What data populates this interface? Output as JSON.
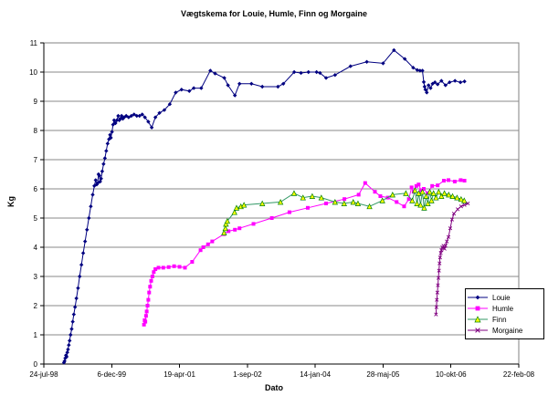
{
  "window": {
    "background": "#ffffff"
  },
  "chart_data": {
    "type": "line",
    "title": "Vægtskema for Louie, Humle, Finn og Morgaine",
    "xlabel": "Dato",
    "ylabel": "Kg",
    "x_unit": "days since 24-jul-98",
    "xlim": [
      0,
      3500
    ],
    "ylim": [
      0,
      11
    ],
    "y_tick_step": 1,
    "x_tick_positions": [
      0,
      500,
      1000,
      1500,
      2000,
      2500,
      3000,
      3500
    ],
    "x_tick_labels": [
      "24-jul-98",
      "6-dec-99",
      "19-apr-01",
      "1-sep-02",
      "14-jan-04",
      "28-maj-05",
      "10-okt-06",
      "22-feb-08"
    ],
    "grid": "horizontal",
    "gridline_color": "#888888",
    "plot_border_color": "#808080",
    "axis_color": "#000000",
    "legend_position": "inside-right-bottom",
    "series": [
      {
        "name": "Louie",
        "color": "#000080",
        "marker": "diamond",
        "marker_color": "#000080",
        "points": [
          [
            148,
            0.05
          ],
          [
            153,
            0.1
          ],
          [
            158,
            0.2
          ],
          [
            163,
            0.3
          ],
          [
            168,
            0.25
          ],
          [
            173,
            0.4
          ],
          [
            178,
            0.5
          ],
          [
            184,
            0.65
          ],
          [
            190,
            0.8
          ],
          [
            197,
            1.0
          ],
          [
            205,
            1.2
          ],
          [
            213,
            1.45
          ],
          [
            221,
            1.7
          ],
          [
            230,
            1.95
          ],
          [
            240,
            2.25
          ],
          [
            252,
            2.6
          ],
          [
            264,
            3.0
          ],
          [
            277,
            3.4
          ],
          [
            290,
            3.8
          ],
          [
            304,
            4.2
          ],
          [
            318,
            4.6
          ],
          [
            332,
            5.0
          ],
          [
            346,
            5.4
          ],
          [
            360,
            5.8
          ],
          [
            372,
            6.1
          ],
          [
            382,
            6.3
          ],
          [
            390,
            6.15
          ],
          [
            397,
            6.2
          ],
          [
            403,
            6.5
          ],
          [
            409,
            6.45
          ],
          [
            415,
            6.25
          ],
          [
            422,
            6.35
          ],
          [
            430,
            6.6
          ],
          [
            440,
            6.85
          ],
          [
            450,
            7.05
          ],
          [
            460,
            7.3
          ],
          [
            470,
            7.55
          ],
          [
            480,
            7.7
          ],
          [
            488,
            7.85
          ],
          [
            494,
            7.75
          ],
          [
            502,
            7.95
          ],
          [
            510,
            8.2
          ],
          [
            518,
            8.35
          ],
          [
            528,
            8.25
          ],
          [
            538,
            8.35
          ],
          [
            548,
            8.5
          ],
          [
            556,
            8.35
          ],
          [
            564,
            8.4
          ],
          [
            573,
            8.5
          ],
          [
            582,
            8.4
          ],
          [
            592,
            8.45
          ],
          [
            607,
            8.5
          ],
          [
            625,
            8.45
          ],
          [
            645,
            8.5
          ],
          [
            665,
            8.55
          ],
          [
            685,
            8.5
          ],
          [
            705,
            8.5
          ],
          [
            725,
            8.55
          ],
          [
            745,
            8.45
          ],
          [
            770,
            8.3
          ],
          [
            795,
            8.1
          ],
          [
            822,
            8.45
          ],
          [
            852,
            8.6
          ],
          [
            888,
            8.7
          ],
          [
            928,
            8.9
          ],
          [
            972,
            9.3
          ],
          [
            1015,
            9.4
          ],
          [
            1072,
            9.35
          ],
          [
            1105,
            9.45
          ],
          [
            1160,
            9.45
          ],
          [
            1227,
            10.05
          ],
          [
            1262,
            9.95
          ],
          [
            1330,
            9.8
          ],
          [
            1357,
            9.55
          ],
          [
            1408,
            9.2
          ],
          [
            1442,
            9.6
          ],
          [
            1530,
            9.6
          ],
          [
            1610,
            9.5
          ],
          [
            1725,
            9.5
          ],
          [
            1765,
            9.6
          ],
          [
            1845,
            10.0
          ],
          [
            1895,
            9.97
          ],
          [
            1950,
            10.0
          ],
          [
            2010,
            10.0
          ],
          [
            2035,
            9.97
          ],
          [
            2080,
            9.8
          ],
          [
            2146,
            9.9
          ],
          [
            2260,
            10.2
          ],
          [
            2380,
            10.35
          ],
          [
            2500,
            10.3
          ],
          [
            2580,
            10.75
          ],
          [
            2660,
            10.45
          ],
          [
            2722,
            10.15
          ],
          [
            2752,
            10.07
          ],
          [
            2772,
            10.05
          ],
          [
            2790,
            10.05
          ],
          [
            2800,
            9.66
          ],
          [
            2806,
            9.5
          ],
          [
            2812,
            9.4
          ],
          [
            2822,
            9.3
          ],
          [
            2835,
            9.55
          ],
          [
            2850,
            9.45
          ],
          [
            2865,
            9.6
          ],
          [
            2882,
            9.65
          ],
          [
            2902,
            9.58
          ],
          [
            2930,
            9.7
          ],
          [
            2960,
            9.55
          ],
          [
            2990,
            9.65
          ],
          [
            3030,
            9.7
          ],
          [
            3070,
            9.65
          ],
          [
            3100,
            9.68
          ]
        ]
      },
      {
        "name": "Humle",
        "color": "#FF00FF",
        "marker": "square",
        "marker_color": "#FF00FF",
        "points": [
          [
            738,
            1.35
          ],
          [
            743,
            1.5
          ],
          [
            748,
            1.45
          ],
          [
            753,
            1.65
          ],
          [
            758,
            1.8
          ],
          [
            764,
            2.0
          ],
          [
            770,
            2.2
          ],
          [
            776,
            2.45
          ],
          [
            783,
            2.65
          ],
          [
            791,
            2.85
          ],
          [
            800,
            3.0
          ],
          [
            810,
            3.15
          ],
          [
            822,
            3.25
          ],
          [
            845,
            3.3
          ],
          [
            880,
            3.3
          ],
          [
            920,
            3.32
          ],
          [
            960,
            3.35
          ],
          [
            1000,
            3.33
          ],
          [
            1040,
            3.3
          ],
          [
            1093,
            3.5
          ],
          [
            1155,
            3.9
          ],
          [
            1175,
            4.0
          ],
          [
            1210,
            4.1
          ],
          [
            1241,
            4.2
          ],
          [
            1328,
            4.45
          ],
          [
            1361,
            4.55
          ],
          [
            1408,
            4.6
          ],
          [
            1442,
            4.65
          ],
          [
            1545,
            4.8
          ],
          [
            1680,
            5.0
          ],
          [
            1810,
            5.2
          ],
          [
            1945,
            5.35
          ],
          [
            2080,
            5.5
          ],
          [
            2215,
            5.65
          ],
          [
            2320,
            5.8
          ],
          [
            2368,
            6.2
          ],
          [
            2440,
            5.9
          ],
          [
            2480,
            5.75
          ],
          [
            2535,
            5.7
          ],
          [
            2600,
            5.55
          ],
          [
            2655,
            5.4
          ],
          [
            2690,
            5.65
          ],
          [
            2710,
            6.05
          ],
          [
            2725,
            5.9
          ],
          [
            2745,
            6.1
          ],
          [
            2762,
            6.15
          ],
          [
            2780,
            5.95
          ],
          [
            2800,
            6.0
          ],
          [
            2828,
            5.85
          ],
          [
            2862,
            6.1
          ],
          [
            2902,
            6.12
          ],
          [
            2948,
            6.28
          ],
          [
            2982,
            6.3
          ],
          [
            3028,
            6.25
          ],
          [
            3072,
            6.3
          ],
          [
            3100,
            6.28
          ]
        ]
      },
      {
        "name": "Finn",
        "color": "#339966",
        "marker": "triangle",
        "marker_fill": "#FFFF00",
        "marker_edge": "#008000",
        "points": [
          [
            1328,
            4.5
          ],
          [
            1338,
            4.65
          ],
          [
            1342,
            4.8
          ],
          [
            1352,
            4.9
          ],
          [
            1405,
            5.2
          ],
          [
            1420,
            5.35
          ],
          [
            1452,
            5.4
          ],
          [
            1475,
            5.45
          ],
          [
            1610,
            5.5
          ],
          [
            1744,
            5.55
          ],
          [
            1844,
            5.85
          ],
          [
            1910,
            5.7
          ],
          [
            1978,
            5.75
          ],
          [
            2045,
            5.7
          ],
          [
            2146,
            5.55
          ],
          [
            2213,
            5.5
          ],
          [
            2280,
            5.55
          ],
          [
            2315,
            5.5
          ],
          [
            2400,
            5.4
          ],
          [
            2495,
            5.6
          ],
          [
            2570,
            5.8
          ],
          [
            2668,
            5.85
          ],
          [
            2715,
            5.6
          ],
          [
            2735,
            5.95
          ],
          [
            2750,
            5.5
          ],
          [
            2763,
            5.85
          ],
          [
            2776,
            5.45
          ],
          [
            2790,
            5.9
          ],
          [
            2803,
            5.35
          ],
          [
            2817,
            5.75
          ],
          [
            2830,
            5.5
          ],
          [
            2844,
            5.9
          ],
          [
            2857,
            5.6
          ],
          [
            2872,
            5.85
          ],
          [
            2890,
            5.7
          ],
          [
            2910,
            5.9
          ],
          [
            2930,
            5.75
          ],
          [
            2952,
            5.85
          ],
          [
            2984,
            5.8
          ],
          [
            3012,
            5.75
          ],
          [
            3045,
            5.7
          ],
          [
            3075,
            5.65
          ],
          [
            3098,
            5.6
          ]
        ]
      },
      {
        "name": "Morgaine",
        "color": "#800080",
        "marker": "x",
        "marker_color": "#800080",
        "points": [
          [
            2890,
            1.7
          ],
          [
            2893,
            1.95
          ],
          [
            2896,
            2.2
          ],
          [
            2900,
            2.45
          ],
          [
            2904,
            2.7
          ],
          [
            2908,
            2.95
          ],
          [
            2912,
            3.2
          ],
          [
            2916,
            3.45
          ],
          [
            2920,
            3.65
          ],
          [
            2925,
            3.8
          ],
          [
            2930,
            3.9
          ],
          [
            2937,
            4.0
          ],
          [
            2945,
            4.05
          ],
          [
            2953,
            3.95
          ],
          [
            2961,
            4.05
          ],
          [
            2970,
            4.2
          ],
          [
            2982,
            4.35
          ],
          [
            2995,
            4.65
          ],
          [
            3008,
            4.95
          ],
          [
            3022,
            5.15
          ],
          [
            3050,
            5.3
          ],
          [
            3075,
            5.4
          ],
          [
            3100,
            5.45
          ],
          [
            3125,
            5.5
          ]
        ]
      }
    ]
  }
}
